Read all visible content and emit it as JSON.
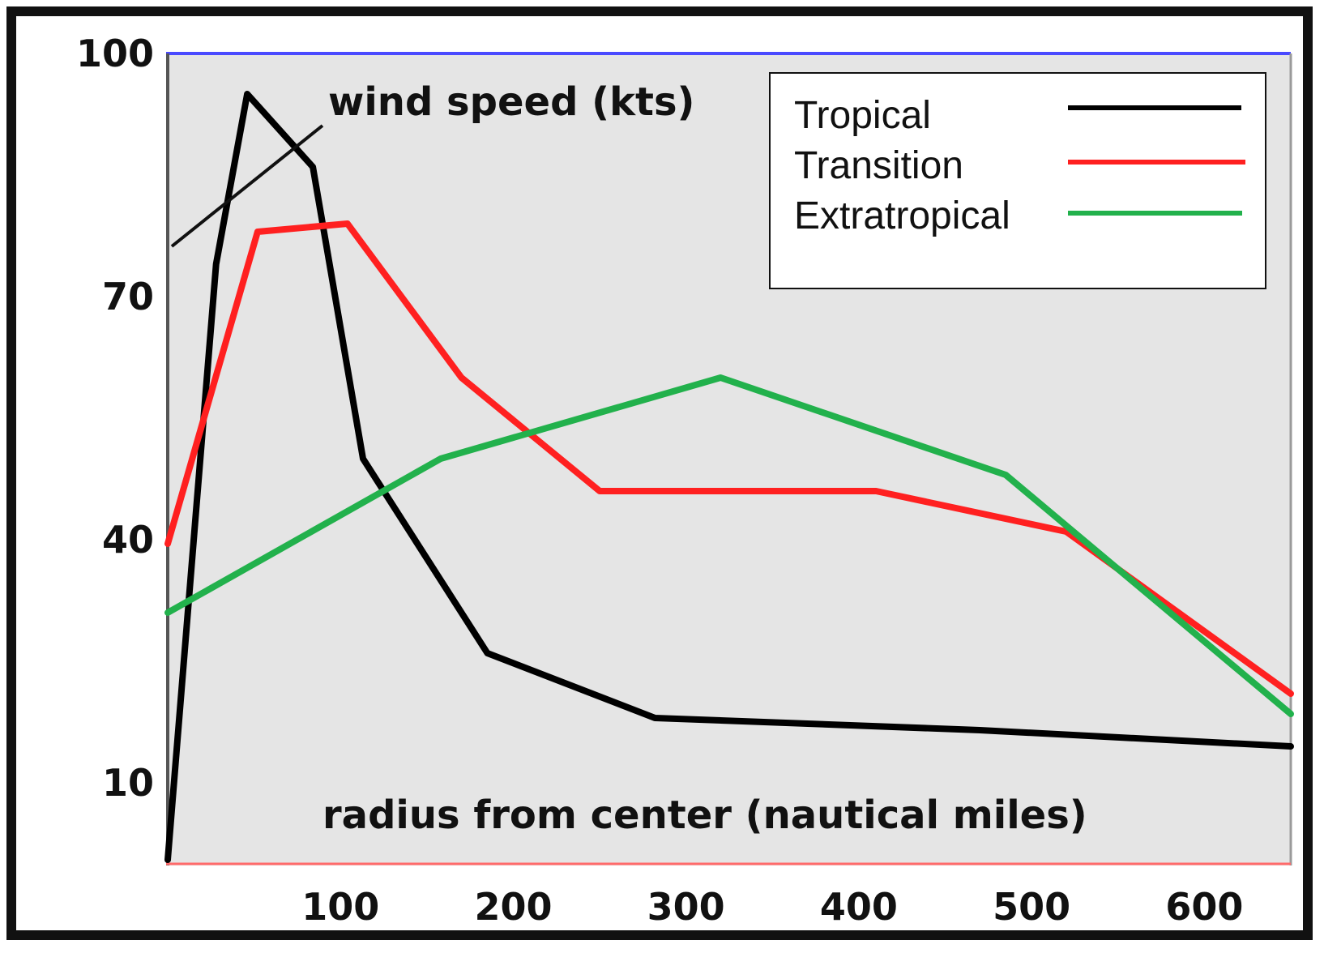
{
  "chart_data": {
    "type": "line",
    "ylabel": "wind speed (kts)",
    "xlabel": "radius from center (nautical miles)",
    "xlim": [
      0,
      650
    ],
    "ylim": [
      0,
      100
    ],
    "x_ticks": [
      100,
      200,
      300,
      400,
      500,
      600
    ],
    "y_ticks": [
      10,
      40,
      70,
      100
    ],
    "grid": false,
    "legend_position": "top-right",
    "background_color": "#e5e5e5",
    "series": [
      {
        "name": "Tropical",
        "color": "#000000",
        "points": [
          [
            0,
            0.5
          ],
          [
            28,
            74
          ],
          [
            46,
            95
          ],
          [
            84,
            86
          ],
          [
            113,
            50
          ],
          [
            185,
            26
          ],
          [
            282,
            18
          ],
          [
            470,
            16.5
          ],
          [
            650,
            14.5
          ]
        ]
      },
      {
        "name": "Transition",
        "color": "#ff2020",
        "points": [
          [
            0,
            39.5
          ],
          [
            52,
            78
          ],
          [
            104,
            79
          ],
          [
            170,
            60
          ],
          [
            250,
            46
          ],
          [
            410,
            46
          ],
          [
            520,
            41
          ],
          [
            650,
            21
          ]
        ]
      },
      {
        "name": "Extratropical",
        "color": "#22b14c",
        "points": [
          [
            0,
            31
          ],
          [
            158,
            50
          ],
          [
            320,
            60
          ],
          [
            485,
            48
          ],
          [
            650,
            18.5
          ]
        ]
      }
    ]
  }
}
